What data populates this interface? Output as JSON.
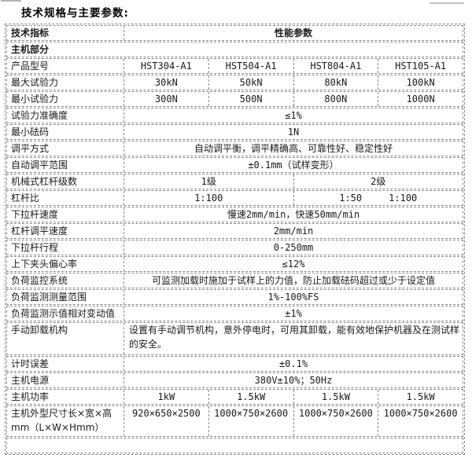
{
  "title": "技术规格与主要参数:",
  "colors": {
    "border": "#8a8a8a",
    "text": "#1a1a1a",
    "background": "#ffffff"
  },
  "table": {
    "header": {
      "indicator": "技术指标",
      "parameter": "性能参数"
    },
    "section_title": "主机部分",
    "rows": [
      {
        "label": "产品型号",
        "values": [
          "HST304-A1",
          "HST504-A1",
          "HST804-A1",
          "HST105-A1"
        ]
      },
      {
        "label": "最大试验力",
        "values": [
          "30kN",
          "50kN",
          "80kN",
          "100kN"
        ]
      },
      {
        "label": "最小试验力",
        "values": [
          "300N",
          "500N",
          "800N",
          "1000N"
        ]
      },
      {
        "label": "试验力准确度",
        "value": "≤1%"
      },
      {
        "label": "最小砝码",
        "value": "1N"
      },
      {
        "label": "调平方式",
        "value": "自动调平衡，调平精确高、可靠性好、稳定性好"
      },
      {
        "label": "自动调平范围",
        "value": "±0.1mm（试样变形）"
      },
      {
        "label": "机械式杠杆级数",
        "left": "1级",
        "right": "2级"
      },
      {
        "label": "杠杆比",
        "left": "1:100",
        "right": [
          "1:50",
          "1:100"
        ]
      },
      {
        "label": "下拉杆速度",
        "value": "慢速2mm/min，快速50mm/min"
      },
      {
        "label": "杠杆调平速度",
        "value": "2mm/min"
      },
      {
        "label": "下拉杆行程",
        "value": "0-250mm"
      },
      {
        "label": "上下夹头偏心率",
        "value": "≤12%"
      },
      {
        "label": "负荷监控系统",
        "value": "可监测加载时施加于试样上的力值，防止加载砝码超过或少于设定值"
      },
      {
        "label": "负荷监测测量范围",
        "value": "1%-100%FS"
      },
      {
        "label": "负荷监测示值相对变动值",
        "value": "±1%"
      },
      {
        "label": "手动卸载机构",
        "value": "设置有手动调节机构，意外停电时，可用其卸载，能有效地保护机器及在测试样的安全。"
      },
      {
        "label": "计时误差",
        "value": "±0.1%"
      },
      {
        "label": "主机电源",
        "value": "380V±10%；50Hz"
      },
      {
        "label": "主机功率",
        "values": [
          "1kW",
          "1.5kW",
          "1.5kW",
          "1.5kW"
        ]
      },
      {
        "label": "主机外型尺寸长×宽×高",
        "label2": "mm（L×W×Hmm）",
        "values": [
          "920×650×2500",
          "1000×750×2600",
          "1000×750×2600",
          "1000×750×2600"
        ]
      }
    ]
  }
}
